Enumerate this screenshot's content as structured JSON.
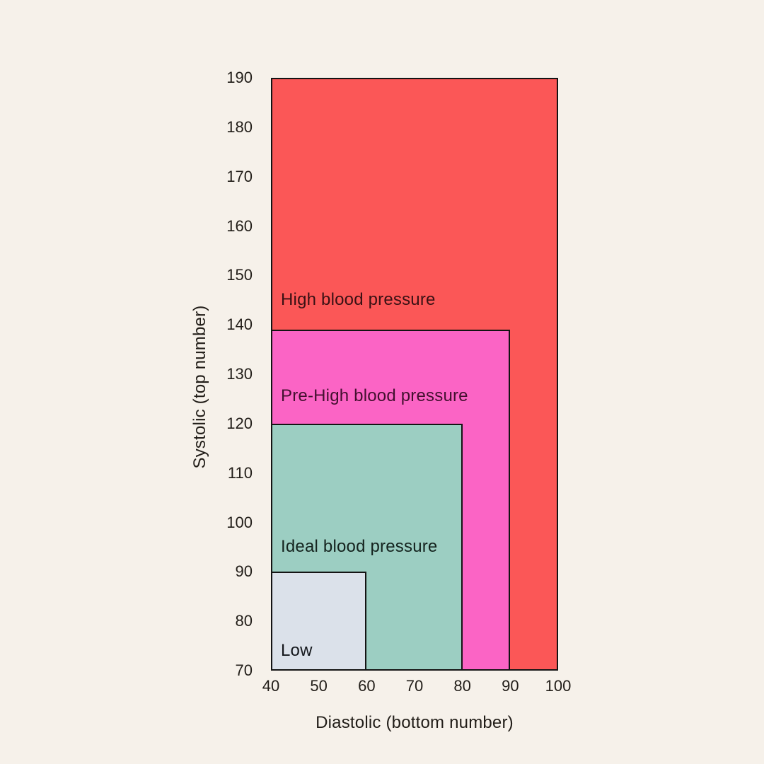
{
  "page": {
    "background": "#F6F1EA"
  },
  "chart_data": {
    "type": "area",
    "title": "",
    "xlabel": "Diastolic (bottom number)",
    "ylabel": "Systolic (top number)",
    "x": {
      "min": 40,
      "max": 100,
      "ticks": [
        40,
        50,
        60,
        70,
        80,
        90,
        100
      ]
    },
    "y": {
      "min": 70,
      "max": 190,
      "ticks": [
        190,
        180,
        170,
        160,
        150,
        140,
        130,
        120,
        110,
        100,
        90,
        80,
        70
      ]
    },
    "grid": false,
    "legend": "none",
    "border_color": "#141414",
    "axis_text_color": "#211D18",
    "regions": [
      {
        "id": "high",
        "label": "High blood pressure",
        "diastolic_range": [
          40,
          100
        ],
        "systolic_range": [
          70,
          190
        ],
        "color": "#FB5757",
        "text_color": "#391114",
        "label_systolic": 145
      },
      {
        "id": "pre-high",
        "label": "Pre-High blood pressure",
        "diastolic_range": [
          40,
          90
        ],
        "systolic_range": [
          70,
          139
        ],
        "color": "#FB64C5",
        "text_color": "#43102F",
        "label_systolic": 125.5
      },
      {
        "id": "ideal",
        "label": "Ideal blood pressure",
        "diastolic_range": [
          40,
          80
        ],
        "systolic_range": [
          70,
          120
        ],
        "color": "#9CCEC2",
        "text_color": "#14231E",
        "label_systolic": 95
      },
      {
        "id": "low",
        "label": "Low",
        "diastolic_range": [
          40,
          60
        ],
        "systolic_range": [
          70,
          90
        ],
        "color": "#DBE1EA",
        "text_color": "#14171C",
        "label_systolic": 74
      }
    ]
  }
}
